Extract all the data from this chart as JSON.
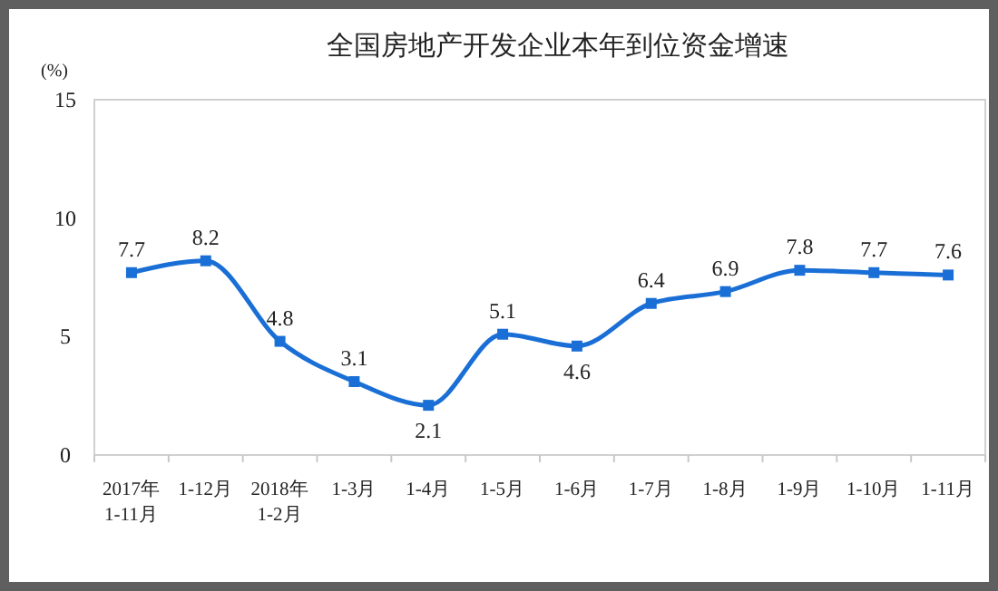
{
  "chart_data": {
    "type": "line",
    "title": "全国房地产开发企业本年到位资金增速",
    "ylabel": "(%)",
    "categories": [
      "2017年\n1-11月",
      "1-12月",
      "2018年\n1-2月",
      "1-3月",
      "1-4月",
      "1-5月",
      "1-6月",
      "1-7月",
      "1-8月",
      "1-9月",
      "1-10月",
      "1-11月"
    ],
    "series": [
      {
        "color": "#1a6fd6",
        "values": [
          7.7,
          8.2,
          4.8,
          3.1,
          2.1,
          5.1,
          4.6,
          6.4,
          6.9,
          7.8,
          7.7,
          7.6
        ]
      }
    ],
    "ylim": [
      0,
      15
    ],
    "yticks": [
      0,
      5,
      10,
      15
    ],
    "marker": "square",
    "line_style": "solid",
    "data_labels": true
  }
}
